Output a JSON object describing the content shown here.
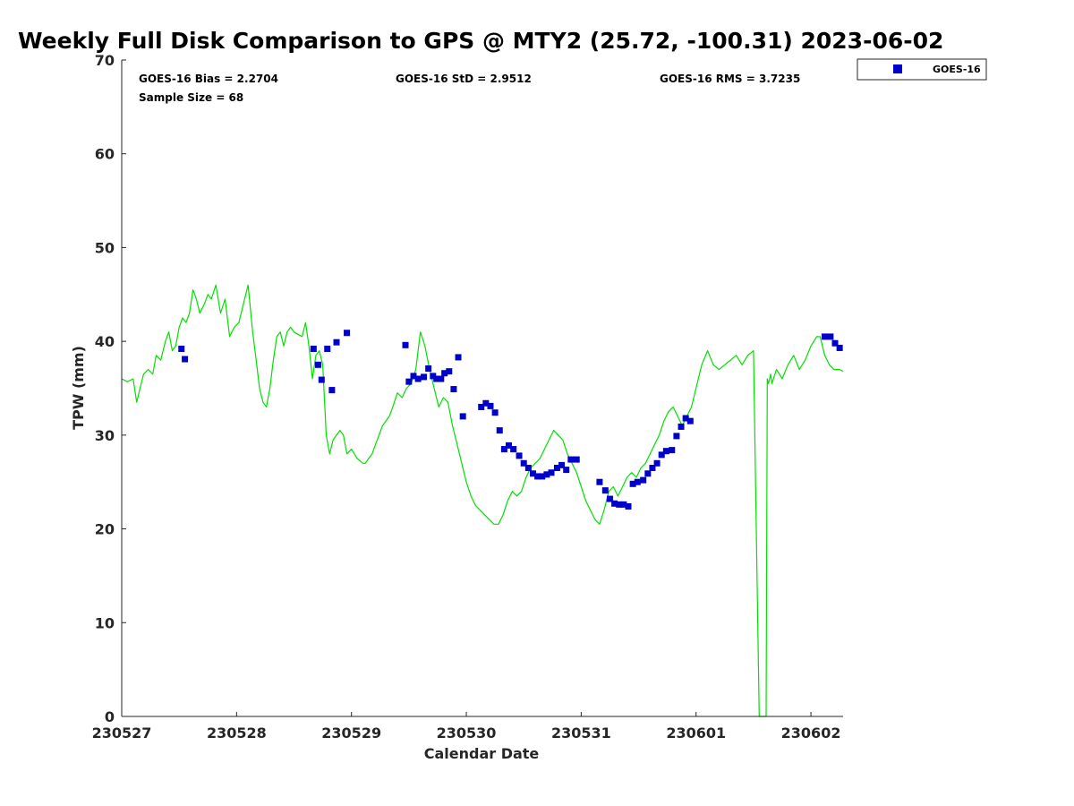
{
  "chart_data": {
    "type": "scatter",
    "title": "Weekly Full Disk Comparison to GPS @ MTY2 (25.72, -100.31) 2023-06-02",
    "xlabel": "Calendar Date",
    "ylabel": "TPW (mm)",
    "xlim": [
      0,
      6.28
    ],
    "ylim": [
      0,
      70
    ],
    "x_ticks": [
      {
        "value": 0,
        "label": "230527"
      },
      {
        "value": 1,
        "label": "230528"
      },
      {
        "value": 2,
        "label": "230529"
      },
      {
        "value": 3,
        "label": "230530"
      },
      {
        "value": 4,
        "label": "230531"
      },
      {
        "value": 5,
        "label": "230601"
      },
      {
        "value": 6,
        "label": "230602"
      }
    ],
    "y_ticks": [
      0,
      10,
      20,
      30,
      40,
      50,
      60,
      70
    ],
    "grid": false,
    "legend": {
      "position": "top-right",
      "entries": [
        "GOES-16"
      ]
    },
    "stats": {
      "bias": "GOES-16 Bias = 2.2704",
      "std": "GOES-16 StD = 2.9512",
      "rms": "GOES-16 RMS = 3.7235",
      "sample": "Sample Size = 68"
    },
    "series": [
      {
        "name": "GOES-16",
        "kind": "scatter",
        "color": "#0000cc",
        "x": [
          0.52,
          0.55,
          1.67,
          1.71,
          1.74,
          1.79,
          1.83,
          1.87,
          1.96,
          2.47,
          2.5,
          2.54,
          2.58,
          2.63,
          2.67,
          2.71,
          2.74,
          2.78,
          2.81,
          2.85,
          2.89,
          2.93,
          2.97,
          3.13,
          3.17,
          3.21,
          3.25,
          3.29,
          3.33,
          3.37,
          3.41,
          3.46,
          3.5,
          3.54,
          3.58,
          3.62,
          3.66,
          3.7,
          3.74,
          3.79,
          3.83,
          3.87,
          3.91,
          3.96,
          4.16,
          4.21,
          4.25,
          4.29,
          4.33,
          4.37,
          4.41,
          4.45,
          4.49,
          4.54,
          4.58,
          4.62,
          4.66,
          4.7,
          4.74,
          4.79,
          4.83,
          4.87,
          4.91,
          4.95,
          6.12,
          6.17,
          6.21,
          6.25
        ],
        "y": [
          39.2,
          38.1,
          39.2,
          37.5,
          35.9,
          39.2,
          34.8,
          39.9,
          40.9,
          39.6,
          35.7,
          36.3,
          36.0,
          36.2,
          37.1,
          36.3,
          36.0,
          36.0,
          36.6,
          36.8,
          34.9,
          38.3,
          32.0,
          33.0,
          33.4,
          33.1,
          32.4,
          30.5,
          28.5,
          28.9,
          28.5,
          27.8,
          27.0,
          26.5,
          25.9,
          25.6,
          25.6,
          25.8,
          26.0,
          26.5,
          26.8,
          26.3,
          27.4,
          27.4,
          25.0,
          24.1,
          23.2,
          22.7,
          22.6,
          22.6,
          22.4,
          24.8,
          25.0,
          25.2,
          25.9,
          26.5,
          27.0,
          27.9,
          28.3,
          28.4,
          29.9,
          30.9,
          31.8,
          31.5,
          40.5,
          40.5,
          39.8,
          39.3
        ]
      },
      {
        "name": "",
        "kind": "line",
        "color": "#00e000",
        "x": [
          0.0,
          0.05,
          0.1,
          0.13,
          0.16,
          0.19,
          0.23,
          0.27,
          0.3,
          0.34,
          0.38,
          0.41,
          0.44,
          0.47,
          0.5,
          0.53,
          0.56,
          0.59,
          0.62,
          0.65,
          0.68,
          0.72,
          0.75,
          0.78,
          0.82,
          0.86,
          0.9,
          0.94,
          0.98,
          1.02,
          1.06,
          1.1,
          1.14,
          1.17,
          1.2,
          1.23,
          1.26,
          1.29,
          1.32,
          1.35,
          1.38,
          1.41,
          1.44,
          1.47,
          1.5,
          1.54,
          1.57,
          1.6,
          1.63,
          1.66,
          1.69,
          1.72,
          1.75,
          1.78,
          1.81,
          1.84,
          1.87,
          1.9,
          1.93,
          1.96,
          2.0,
          2.05,
          2.1,
          2.12,
          2.15,
          2.18,
          2.21,
          2.24,
          2.27,
          2.3,
          2.33,
          2.36,
          2.4,
          2.44,
          2.48,
          2.52,
          2.56,
          2.6,
          2.64,
          2.68,
          2.72,
          2.76,
          2.8,
          2.84,
          2.88,
          2.92,
          2.96,
          3.0,
          3.04,
          3.08,
          3.12,
          3.16,
          3.2,
          3.24,
          3.28,
          3.32,
          3.36,
          3.4,
          3.44,
          3.48,
          3.52,
          3.56,
          3.6,
          3.64,
          3.68,
          3.72,
          3.76,
          3.8,
          3.84,
          3.88,
          3.92,
          3.96,
          4.0,
          4.04,
          4.08,
          4.12,
          4.16,
          4.2,
          4.24,
          4.28,
          4.32,
          4.36,
          4.4,
          4.44,
          4.48,
          4.52,
          4.56,
          4.6,
          4.64,
          4.68,
          4.72,
          4.76,
          4.8,
          4.84,
          4.88,
          4.92,
          4.96,
          5.0,
          5.05,
          5.1,
          5.15,
          5.2,
          5.25,
          5.3,
          5.35,
          5.4,
          5.45,
          5.5,
          5.55,
          5.56,
          5.57,
          5.59,
          5.6,
          5.61,
          5.62,
          5.63,
          5.64,
          5.65,
          5.66,
          5.7,
          5.75,
          5.8,
          5.85,
          5.9,
          5.95,
          6.0,
          6.05,
          6.08,
          6.12,
          6.16,
          6.2,
          6.25,
          6.28
        ],
        "y": [
          36.0,
          35.7,
          36.0,
          33.5,
          35.0,
          36.5,
          37.0,
          36.5,
          38.5,
          38.0,
          40.0,
          41.0,
          39.0,
          39.5,
          41.5,
          42.5,
          42.0,
          43.0,
          45.5,
          44.5,
          43.0,
          44.0,
          45.0,
          44.5,
          46.0,
          43.0,
          44.5,
          40.5,
          41.5,
          42.0,
          44.0,
          46.0,
          41.0,
          38.0,
          35.0,
          33.5,
          33.0,
          35.0,
          38.0,
          40.5,
          41.0,
          39.5,
          41.0,
          41.5,
          41.0,
          40.7,
          40.5,
          42.0,
          39.5,
          36.0,
          38.5,
          39.0,
          37.5,
          30.0,
          28.0,
          29.5,
          30.0,
          30.5,
          30.0,
          28.0,
          28.5,
          27.5,
          27.0,
          27.0,
          27.5,
          28.0,
          29.0,
          30.0,
          31.0,
          31.5,
          32.0,
          33.0,
          34.5,
          34.0,
          35.0,
          35.5,
          37.0,
          41.0,
          39.5,
          37.0,
          35.0,
          33.0,
          34.0,
          33.5,
          31.0,
          29.0,
          27.0,
          25.0,
          23.5,
          22.5,
          22.0,
          21.5,
          21.0,
          20.5,
          20.5,
          21.5,
          23.0,
          24.0,
          23.5,
          24.0,
          25.5,
          26.5,
          27.0,
          27.5,
          28.5,
          29.5,
          30.5,
          30.0,
          29.5,
          28.0,
          27.0,
          26.0,
          24.5,
          23.0,
          22.0,
          21.0,
          20.5,
          22.0,
          24.0,
          24.5,
          23.5,
          24.5,
          25.5,
          26.0,
          25.5,
          26.5,
          27.0,
          28.0,
          29.0,
          30.0,
          31.5,
          32.5,
          33.0,
          32.0,
          31.0,
          32.0,
          33.0,
          35.0,
          37.5,
          39.0,
          37.5,
          37.0,
          37.5,
          38.0,
          38.5,
          37.5,
          38.5,
          39.0,
          0.0,
          0.0,
          0.0,
          0.0,
          0.0,
          0.0,
          36.0,
          35.5,
          36.0,
          36.5,
          35.5,
          37.0,
          36.0,
          37.5,
          38.5,
          37.0,
          38.0,
          39.5,
          40.5,
          40.5,
          38.5,
          37.5,
          37.0,
          37.0,
          36.8
        ]
      }
    ]
  }
}
